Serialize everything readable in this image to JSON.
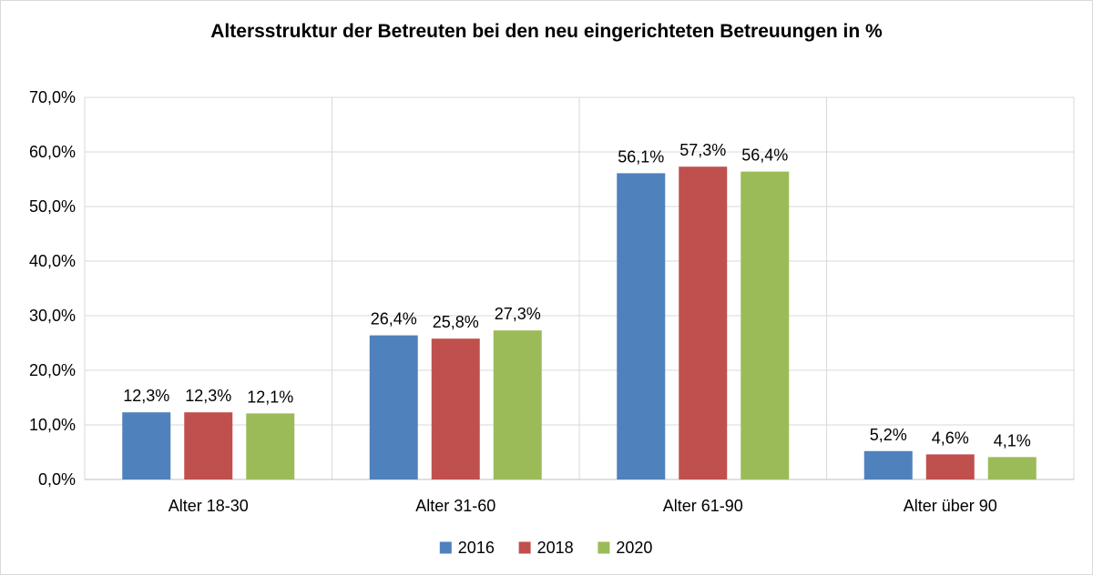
{
  "chart_data": {
    "type": "bar",
    "title": "Altersstruktur der Betreuten bei den neu eingerichteten Betreuungen in %",
    "xlabel": "",
    "ylabel": "",
    "categories": [
      "Alter 18-30",
      "Alter 31-60",
      "Alter 61-90",
      "Alter über 90"
    ],
    "series": [
      {
        "name": "2016",
        "color": "#4F81BD",
        "values": [
          12.3,
          26.4,
          56.1,
          5.2
        ],
        "labels": [
          "12,3%",
          "26,4%",
          "56,1%",
          "5,2%"
        ]
      },
      {
        "name": "2018",
        "color": "#C0504D",
        "values": [
          12.3,
          25.8,
          57.3,
          4.6
        ],
        "labels": [
          "12,3%",
          "25,8%",
          "57,3%",
          "4,6%"
        ]
      },
      {
        "name": "2020",
        "color": "#9BBB59",
        "values": [
          12.1,
          27.3,
          56.4,
          4.1
        ],
        "labels": [
          "12,1%",
          "27,3%",
          "56,4%",
          "4,1%"
        ]
      }
    ],
    "ylim": [
      0,
      70
    ],
    "yticks": [
      0,
      10,
      20,
      30,
      40,
      50,
      60,
      70
    ],
    "ytick_labels": [
      "0,0%",
      "10,0%",
      "20,0%",
      "30,0%",
      "40,0%",
      "50,0%",
      "60,0%",
      "70,0%"
    ],
    "grid": true,
    "legend_position": "bottom"
  }
}
